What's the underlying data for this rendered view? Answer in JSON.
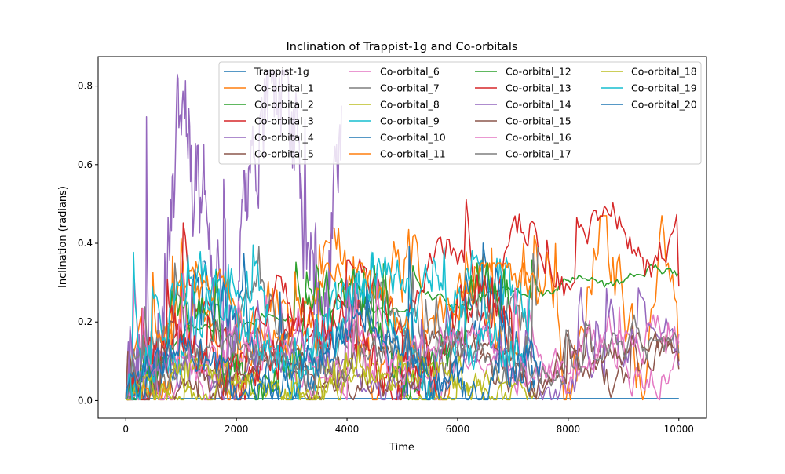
{
  "chart_data": {
    "type": "line",
    "title": "Inclination of Trappist-1g and Co-orbitals",
    "xlabel": "Time",
    "ylabel": "Inclination (radians)",
    "xlim": [
      -500,
      10500
    ],
    "ylim": [
      -0.045,
      0.875
    ],
    "xticks": [
      0,
      2000,
      4000,
      6000,
      8000,
      10000
    ],
    "xtick_labels": [
      "0",
      "2000",
      "4000",
      "6000",
      "8000",
      "10000"
    ],
    "yticks": [
      0.0,
      0.2,
      0.4,
      0.6,
      0.8
    ],
    "ytick_labels": [
      "0.0",
      "0.2",
      "0.4",
      "0.6",
      "0.8"
    ],
    "grid": false,
    "legend": {
      "position": "top-right",
      "columns": 4
    },
    "series": [
      {
        "name": "Trappist-1g",
        "color": "#1f77b4",
        "start": 0,
        "end": 10000,
        "end_value": 0.005,
        "amplitude": 0.0,
        "base": 0.005,
        "late_base": 0.005,
        "peak": 0.005,
        "noise": 0.0
      },
      {
        "name": "Co-orbital_1",
        "color": "#ff7f0e",
        "start": 0,
        "end": 10000,
        "end_value": 0.1,
        "amplitude": 0.18,
        "base": 0.12,
        "late_base": 0.25,
        "peak": 0.47,
        "noise": 0.09
      },
      {
        "name": "Co-orbital_2",
        "color": "#2ca02c",
        "start": 0,
        "end": 10000,
        "end_value": 0.325,
        "amplitude": 0.02,
        "base": 0.15,
        "late_base": 0.33,
        "peak": 0.36,
        "noise": 0.01
      },
      {
        "name": "Co-orbital_3",
        "color": "#d62728",
        "start": 0,
        "end": 10000,
        "end_value": 0.29,
        "amplitude": 0.1,
        "base": 0.12,
        "late_base": 0.45,
        "peak": 0.52,
        "noise": 0.04
      },
      {
        "name": "Co-orbital_4",
        "color": "#9467bd",
        "start": 0,
        "end": 3900,
        "end_value": 0.75,
        "amplitude": 0.35,
        "base": 0.2,
        "late_base": 0.75,
        "peak": 0.84,
        "noise": 0.15
      },
      {
        "name": "Co-orbital_5",
        "color": "#8c564b",
        "start": 0,
        "end": 10000,
        "end_value": 0.08,
        "amplitude": 0.06,
        "base": 0.08,
        "late_base": 0.09,
        "peak": 0.21,
        "noise": 0.04
      },
      {
        "name": "Co-orbital_6",
        "color": "#e377c2",
        "start": 0,
        "end": 10000,
        "end_value": 0.17,
        "amplitude": 0.06,
        "base": 0.07,
        "late_base": 0.1,
        "peak": 0.32,
        "noise": 0.04
      },
      {
        "name": "Co-orbital_7",
        "color": "#7f7f7f",
        "start": 0,
        "end": 7450,
        "end_value": 0.39,
        "amplitude": 0.08,
        "base": 0.15,
        "late_base": 0.2,
        "peak": 0.4,
        "noise": 0.05
      },
      {
        "name": "Co-orbital_8",
        "color": "#bcbd22",
        "start": 0,
        "end": 7400,
        "end_value": 0.02,
        "amplitude": 0.03,
        "base": 0.02,
        "late_base": 0.02,
        "peak": 0.12,
        "noise": 0.02
      },
      {
        "name": "Co-orbital_9",
        "color": "#17becf",
        "start": 0,
        "end": 7300,
        "end_value": 0.23,
        "amplitude": 0.12,
        "base": 0.18,
        "late_base": 0.18,
        "peak": 0.4,
        "noise": 0.06
      },
      {
        "name": "Co-orbital_10",
        "color": "#1f77b4",
        "start": 0,
        "end": 7400,
        "end_value": 0.06,
        "amplitude": 0.1,
        "base": 0.15,
        "late_base": 0.08,
        "peak": 0.41,
        "noise": 0.05
      },
      {
        "name": "Co-orbital_11",
        "color": "#ff7f0e",
        "start": 0,
        "end": 7500,
        "end_value": 0.28,
        "amplitude": 0.08,
        "base": 0.2,
        "late_base": 0.28,
        "peak": 0.35,
        "noise": 0.04
      },
      {
        "name": "Co-orbital_12",
        "color": "#2ca02c",
        "start": 0,
        "end": 7000,
        "end_value": 0.1,
        "amplitude": 0.12,
        "base": 0.12,
        "late_base": 0.18,
        "peak": 0.35,
        "noise": 0.05
      },
      {
        "name": "Co-orbital_13",
        "color": "#d62728",
        "start": 0,
        "end": 7000,
        "end_value": 0.1,
        "amplitude": 0.1,
        "base": 0.1,
        "late_base": 0.14,
        "peak": 0.32,
        "noise": 0.05
      },
      {
        "name": "Co-orbital_14",
        "color": "#9467bd",
        "start": 0,
        "end": 10000,
        "end_value": 0.09,
        "amplitude": 0.06,
        "base": 0.08,
        "late_base": 0.09,
        "peak": 0.32,
        "noise": 0.04
      },
      {
        "name": "Co-orbital_15",
        "color": "#8c564b",
        "start": 0,
        "end": 10000,
        "end_value": 0.1,
        "amplitude": 0.05,
        "base": 0.06,
        "late_base": 0.09,
        "peak": 0.18,
        "noise": 0.03
      },
      {
        "name": "Co-orbital_16",
        "color": "#e377c2",
        "start": 0,
        "end": 10000,
        "end_value": 0.15,
        "amplitude": 0.06,
        "base": 0.08,
        "late_base": 0.12,
        "peak": 0.33,
        "noise": 0.04
      },
      {
        "name": "Co-orbital_17",
        "color": "#7f7f7f",
        "start": 0,
        "end": 10000,
        "end_value": 0.12,
        "amplitude": 0.05,
        "base": 0.09,
        "late_base": 0.11,
        "peak": 0.3,
        "noise": 0.04
      },
      {
        "name": "Co-orbital_18",
        "color": "#bcbd22",
        "start": 0,
        "end": 7000,
        "end_value": 0.04,
        "amplitude": 0.04,
        "base": 0.04,
        "late_base": 0.04,
        "peak": 0.17,
        "noise": 0.03
      },
      {
        "name": "Co-orbital_19",
        "color": "#17becf",
        "start": 0,
        "end": 7300,
        "end_value": 0.28,
        "amplitude": 0.1,
        "base": 0.18,
        "late_base": 0.24,
        "peak": 0.4,
        "noise": 0.05
      },
      {
        "name": "Co-orbital_20",
        "color": "#1f77b4",
        "start": 0,
        "end": 7500,
        "end_value": 0.1,
        "amplitude": 0.08,
        "base": 0.1,
        "late_base": 0.1,
        "peak": 0.35,
        "noise": 0.04
      }
    ]
  }
}
